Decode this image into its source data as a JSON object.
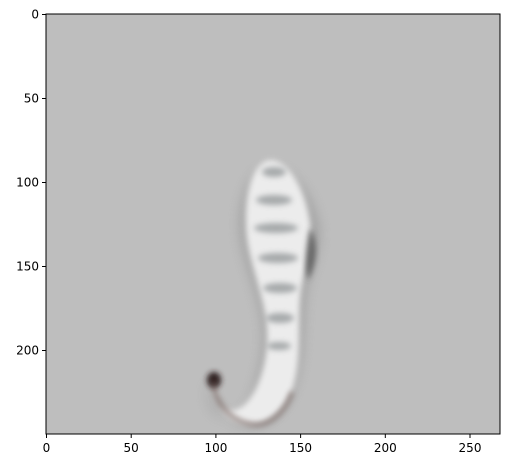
{
  "image": {
    "subject": "blurred grayscale seahorse-like shape",
    "background_color": "#bebebe",
    "x_axis": {
      "ticks": [
        "0",
        "50",
        "100",
        "150",
        "200",
        "250"
      ],
      "range": [
        0,
        268
      ]
    },
    "y_axis": {
      "ticks": [
        "0",
        "50",
        "100",
        "150",
        "200"
      ],
      "range": [
        0,
        250
      ],
      "inverted": true
    }
  }
}
